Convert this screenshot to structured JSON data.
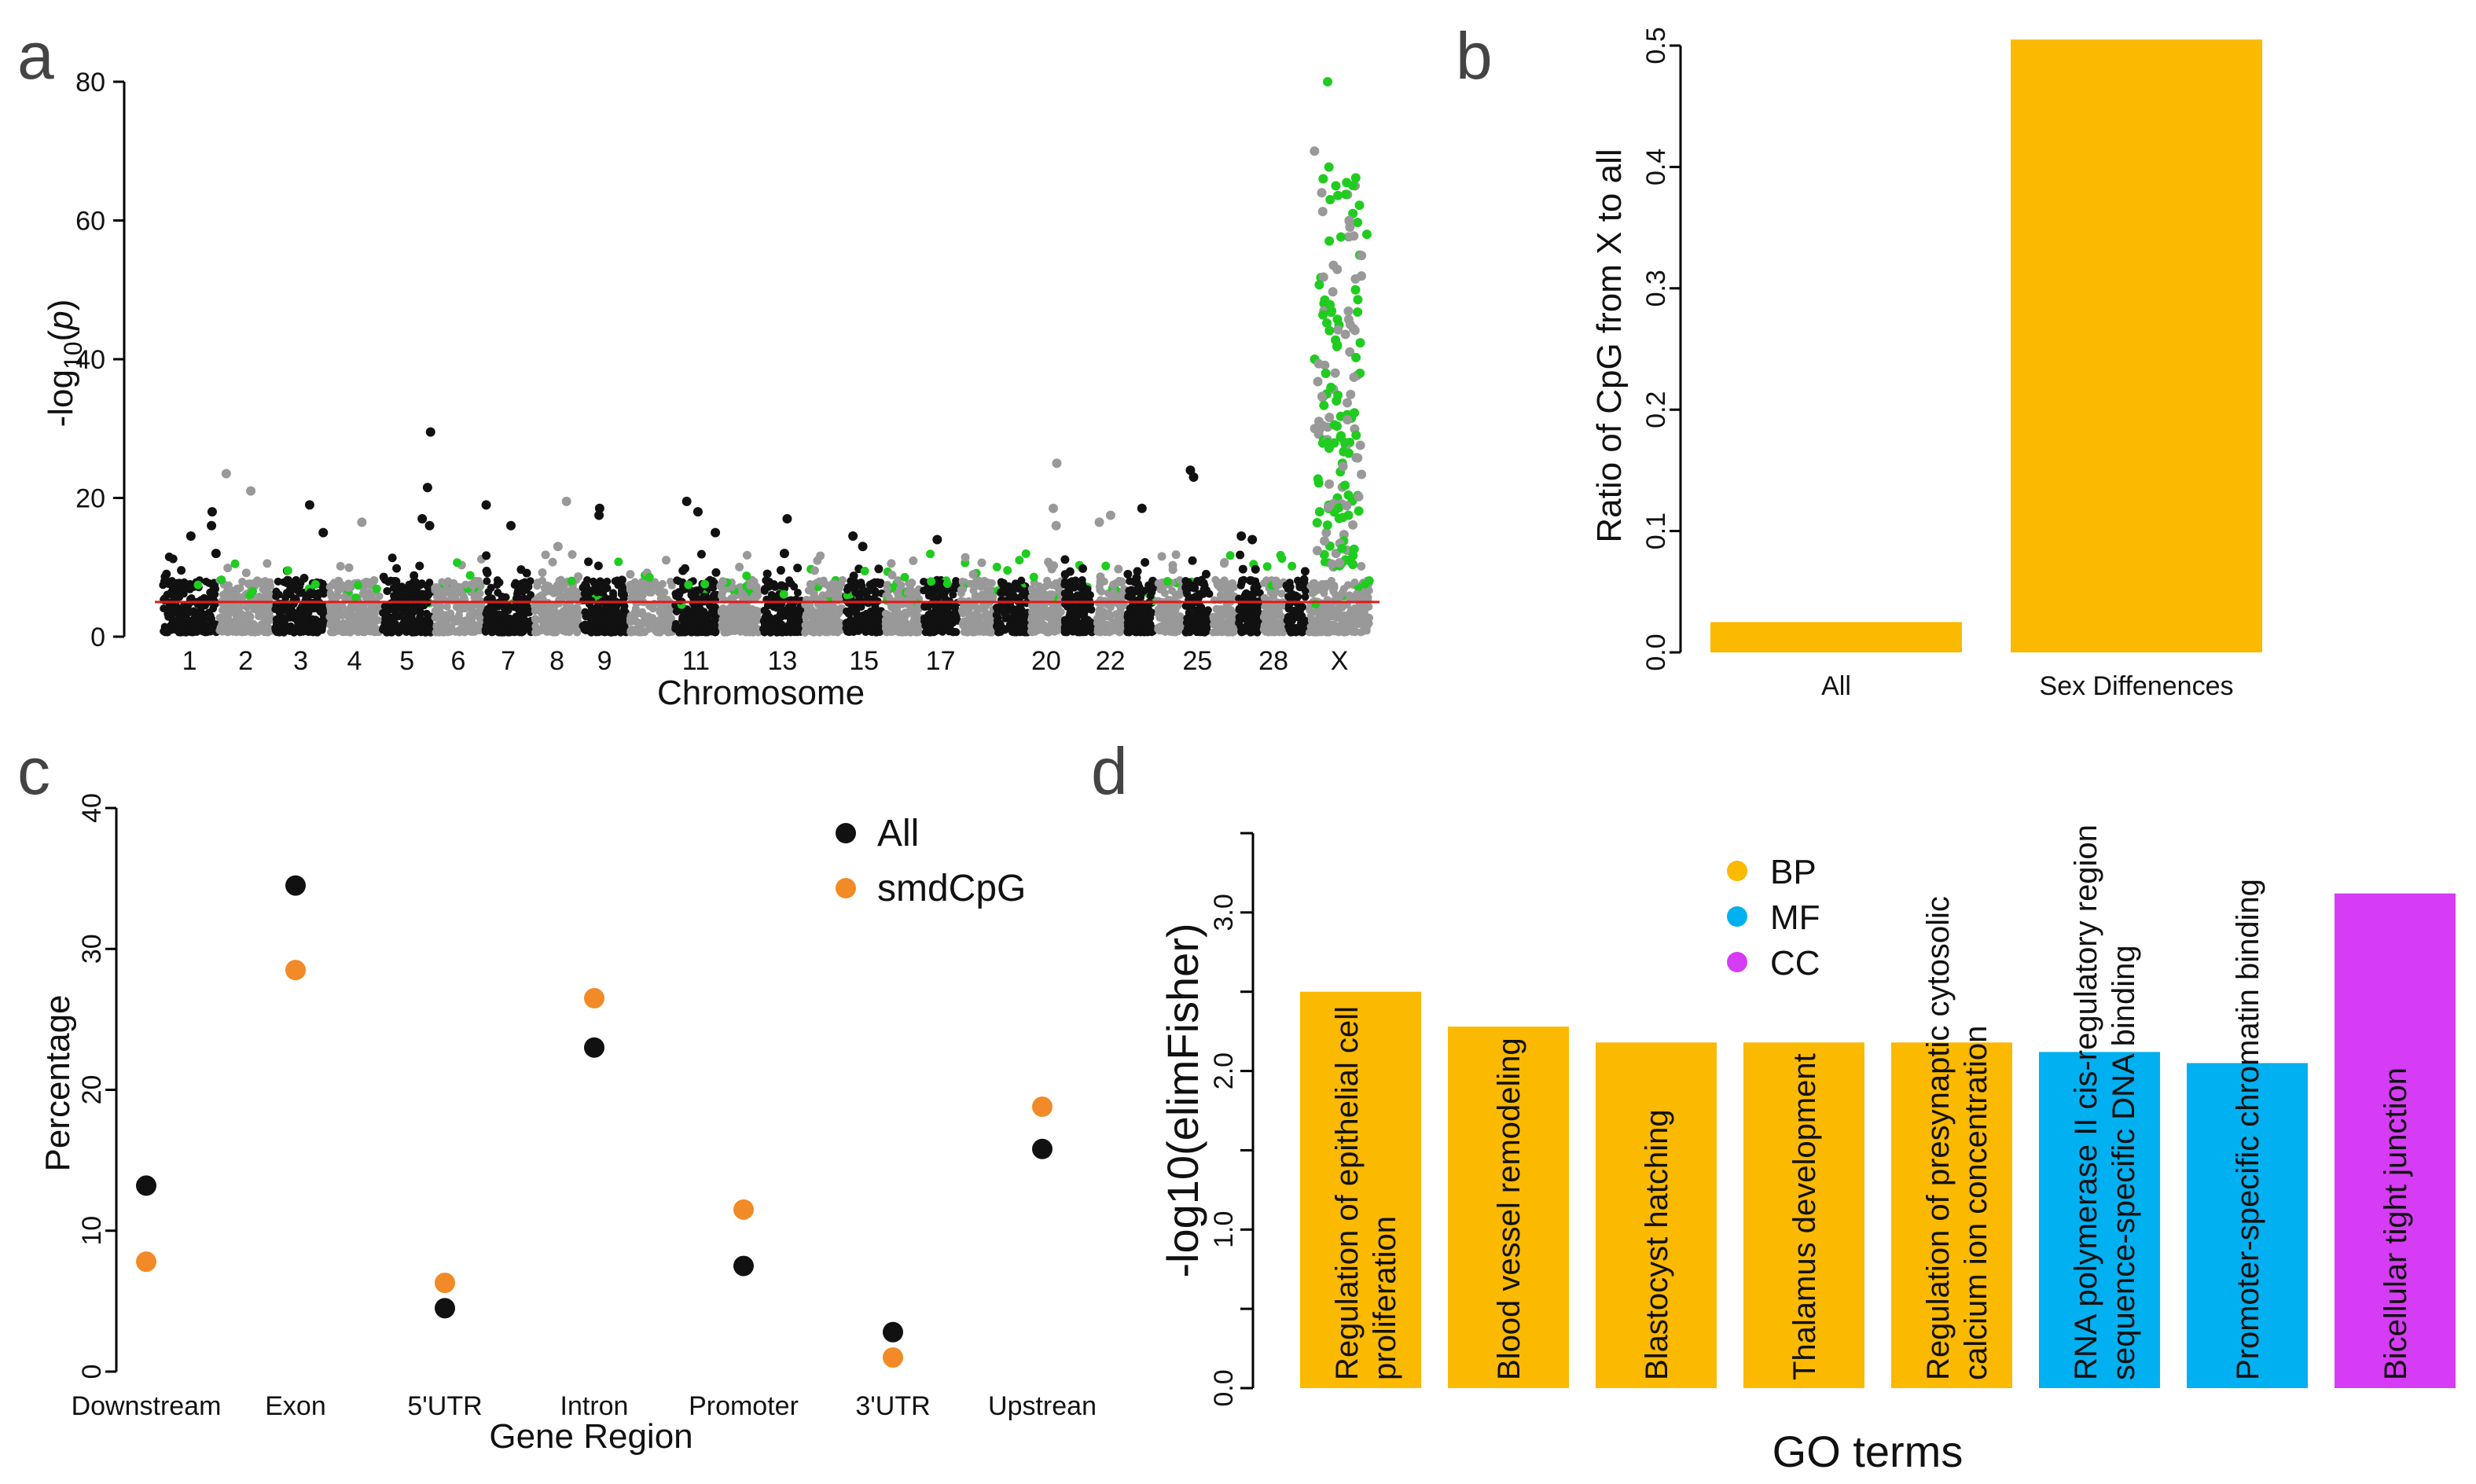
{
  "figure": {
    "panel_labels": [
      "a",
      "b",
      "c",
      "d"
    ]
  },
  "colors": {
    "black": "#111111",
    "gray": "#999999",
    "green": "#1fcc1f",
    "red_threshold": "#e31a1c",
    "orange_bar": "#fbb900",
    "orange_point": "#f28a27",
    "blue_bar": "#00b0f0",
    "magenta_bar": "#d63cf5"
  },
  "chart_data": [
    {
      "id": "a",
      "type": "scatter",
      "subtype": "manhattan",
      "xlabel": "Chromosome",
      "ylabel_main": "-log",
      "ylabel_sub": "10",
      "ylabel_tail": "(",
      "ylabel_p": "p",
      "ylabel_close": ")",
      "ylim": [
        0,
        80
      ],
      "yticks": [
        0,
        20,
        40,
        60,
        80
      ],
      "threshold": 5,
      "chromosomes": [
        "1",
        "2",
        "3",
        "4",
        "5",
        "6",
        "7",
        "8",
        "9",
        "10",
        "11",
        "12",
        "13",
        "14",
        "15",
        "16",
        "17",
        "18",
        "19",
        "20",
        "21",
        "22",
        "23",
        "24",
        "25",
        "26",
        "27",
        "28",
        "29",
        "X"
      ],
      "chromosome_tick_labels": [
        {
          "chrom": "1",
          "label": "1"
        },
        {
          "chrom": "2",
          "label": "2"
        },
        {
          "chrom": "3",
          "label": "3"
        },
        {
          "chrom": "4",
          "label": "4"
        },
        {
          "chrom": "5",
          "label": "5"
        },
        {
          "chrom": "6",
          "label": "6"
        },
        {
          "chrom": "7",
          "label": "7"
        },
        {
          "chrom": "8",
          "label": "8"
        },
        {
          "chrom": "9",
          "label": "9"
        },
        {
          "chrom": "11",
          "label": "11"
        },
        {
          "chrom": "13",
          "label": "13"
        },
        {
          "chrom": "15",
          "label": "15"
        },
        {
          "chrom": "17",
          "label": "17"
        },
        {
          "chrom": "20",
          "label": "20"
        },
        {
          "chrom": "22",
          "label": "22"
        },
        {
          "chrom": "25",
          "label": "25"
        },
        {
          "chrom": "28",
          "label": "28"
        },
        {
          "chrom": "X",
          "label": "X"
        }
      ],
      "peaks": [
        {
          "chrom": "1",
          "values": [
            16,
            18,
            14.5,
            12
          ]
        },
        {
          "chrom": "2",
          "values": [
            23.5,
            21
          ]
        },
        {
          "chrom": "3",
          "values": [
            19,
            15
          ]
        },
        {
          "chrom": "4",
          "values": [
            16.5
          ]
        },
        {
          "chrom": "5",
          "values": [
            29.5,
            21.5,
            17,
            16
          ]
        },
        {
          "chrom": "7",
          "values": [
            19,
            16
          ]
        },
        {
          "chrom": "8",
          "values": [
            19.5,
            13
          ]
        },
        {
          "chrom": "9",
          "values": [
            18.5,
            17.5
          ]
        },
        {
          "chrom": "11",
          "values": [
            19.5,
            18,
            15
          ]
        },
        {
          "chrom": "13",
          "values": [
            17,
            12
          ]
        },
        {
          "chrom": "15",
          "values": [
            14.5,
            13
          ]
        },
        {
          "chrom": "17",
          "values": [
            14
          ]
        },
        {
          "chrom": "20",
          "values": [
            25,
            18.5,
            16
          ]
        },
        {
          "chrom": "22",
          "values": [
            17.5,
            16.5
          ]
        },
        {
          "chrom": "23",
          "values": [
            18.5
          ]
        },
        {
          "chrom": "25",
          "values": [
            24,
            23
          ]
        },
        {
          "chrom": "27",
          "values": [
            14.5,
            14
          ]
        },
        {
          "chrom": "X",
          "values": [
            80,
            70,
            66,
            65,
            64,
            63,
            61,
            60,
            58,
            55,
            52,
            50,
            48,
            45,
            42,
            40,
            38,
            35,
            32,
            30,
            28,
            25,
            22,
            20,
            18,
            15
          ]
        }
      ]
    },
    {
      "id": "b",
      "type": "bar",
      "categories": [
        "All",
        "Sex Diffenences"
      ],
      "values": [
        0.025,
        0.505
      ],
      "ylabel": "Ratio of CpG from X to all",
      "ylim": [
        0,
        0.5
      ],
      "yticks": [
        "0.0",
        "0.1",
        "0.2",
        "0.3",
        "0.4",
        "0.5"
      ],
      "color": "#fbb900"
    },
    {
      "id": "c",
      "type": "scatter",
      "xlabel": "Gene Region",
      "ylabel": "Percentage",
      "ylim": [
        0,
        40
      ],
      "yticks": [
        "0",
        "10",
        "20",
        "30",
        "40"
      ],
      "categories": [
        "Downstream",
        "Exon",
        "5'UTR",
        "Intron",
        "Promoter",
        "3'UTR",
        "Upstrean"
      ],
      "series": [
        {
          "name": "All",
          "color": "#111111",
          "values": [
            13.2,
            34.5,
            4.5,
            23.0,
            7.5,
            2.8,
            15.8
          ]
        },
        {
          "name": "smdCpG",
          "color": "#f28a27",
          "values": [
            7.8,
            28.5,
            6.3,
            26.5,
            11.5,
            1.0,
            18.8
          ]
        }
      ]
    },
    {
      "id": "d",
      "type": "bar",
      "xlabel": "GO terms",
      "ylabel": "-log10(elimFisher)",
      "ylim": [
        0,
        3.5
      ],
      "yticks": [
        "0.0",
        "1.0",
        "2.0",
        "3.0"
      ],
      "legend": [
        {
          "name": "BP",
          "color": "#fbb900"
        },
        {
          "name": "MF",
          "color": "#00b0f0"
        },
        {
          "name": "CC",
          "color": "#d63cf5"
        }
      ],
      "bars": [
        {
          "line1": "Regulation of epithelial cell",
          "line2": "proliferation",
          "value": 2.5,
          "group": "BP"
        },
        {
          "line1": "Blood vessel remodeling",
          "line2": "",
          "value": 2.28,
          "group": "BP"
        },
        {
          "line1": "Blastocyst hatching",
          "line2": "",
          "value": 2.18,
          "group": "BP"
        },
        {
          "line1": "Thalamus development",
          "line2": "",
          "value": 2.18,
          "group": "BP"
        },
        {
          "line1": "Regulation of presynaptic cytosolic",
          "line2": "calcium ion concentration",
          "value": 2.18,
          "group": "BP"
        },
        {
          "line1": "RNA polymerase II cis-regulatory region",
          "line2": "sequence-specific DNA binding",
          "value": 2.12,
          "group": "MF"
        },
        {
          "line1": "Promoter-specific chromatin binding",
          "line2": "",
          "value": 2.05,
          "group": "MF"
        },
        {
          "line1": "Bicellular tight junction",
          "line2": "",
          "value": 3.12,
          "group": "CC"
        }
      ]
    }
  ]
}
